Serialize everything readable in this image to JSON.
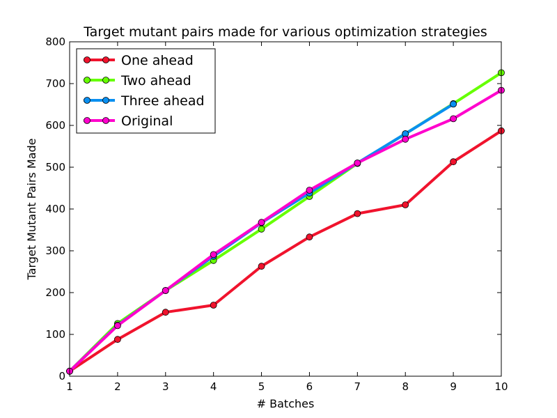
{
  "chart_data": {
    "type": "line",
    "title": "Target mutant pairs made for various optimization strategies",
    "xlabel": "# Batches",
    "ylabel": "Target Mutant Pairs Made",
    "xlim": [
      1,
      10
    ],
    "ylim": [
      0,
      800
    ],
    "x_ticks": [
      "1",
      "2",
      "3",
      "4",
      "5",
      "6",
      "7",
      "8",
      "9",
      "10"
    ],
    "y_ticks": [
      "0",
      "100",
      "200",
      "300",
      "400",
      "500",
      "600",
      "700",
      "800"
    ],
    "grid": false,
    "legend_position": "top-left",
    "series": [
      {
        "name": "One ahead",
        "color": "#f0132d",
        "x": [
          1,
          2,
          3,
          4,
          5,
          6,
          7,
          8,
          9,
          10
        ],
        "values": [
          12,
          88,
          153,
          170,
          263,
          333,
          389,
          410,
          513,
          587
        ]
      },
      {
        "name": "Two ahead",
        "color": "#66ff00",
        "x": [
          1,
          2,
          3,
          4,
          5,
          6,
          7,
          8,
          9,
          10
        ],
        "values": [
          12,
          126,
          205,
          277,
          352,
          430,
          509,
          580,
          652,
          726
        ]
      },
      {
        "name": "Three ahead",
        "color": "#0a8ff0",
        "x": [
          1,
          2,
          3,
          4,
          5,
          6,
          7,
          8,
          9
        ],
        "values": [
          12,
          122,
          205,
          287,
          367,
          438,
          510,
          580,
          651
        ]
      },
      {
        "name": "Original",
        "color": "#ff00cc",
        "x": [
          1,
          2,
          3,
          4,
          5,
          6,
          7,
          8,
          9,
          10
        ],
        "values": [
          12,
          121,
          205,
          291,
          368,
          445,
          510,
          567,
          616,
          684
        ]
      }
    ]
  }
}
